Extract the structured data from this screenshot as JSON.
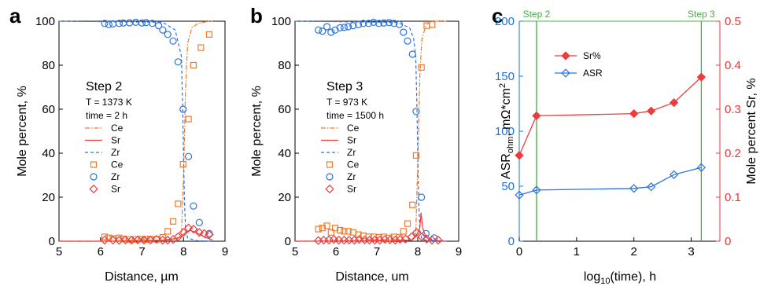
{
  "colors": {
    "ce": "#f27a2a",
    "zr": "#2a73e0",
    "sr": "#ee3b3b",
    "asr_axis": "#1f6fd6",
    "sr_axis": "#ee3333",
    "step_lines": "#3fb33a"
  },
  "chart_data": [
    {
      "panel": "a",
      "type": "scatter",
      "xlabel": "Distance, µm",
      "ylabel": "Mole percent, %",
      "xlim": [
        5,
        9
      ],
      "ylim": [
        0,
        100
      ],
      "xticks": [
        5,
        6,
        7,
        8,
        9
      ],
      "yticks": [
        0,
        20,
        40,
        60,
        80,
        100
      ],
      "step_title": "Step 2",
      "conditions": [
        "T = 1373 K",
        "time = 2 h"
      ],
      "legend": [
        "Ce",
        "Sr",
        "Zr",
        "Ce",
        "Zr",
        "Sr"
      ],
      "lines": {
        "Ce": [
          [
            5.0,
            0
          ],
          [
            6.0,
            0
          ],
          [
            7.5,
            0.3
          ],
          [
            7.85,
            1.0
          ],
          [
            7.95,
            3
          ],
          [
            8.0,
            30
          ],
          [
            8.05,
            70
          ],
          [
            8.1,
            90
          ],
          [
            8.2,
            97
          ],
          [
            8.35,
            99
          ],
          [
            8.6,
            100
          ],
          [
            8.7,
            100
          ]
        ],
        "Sr": [
          [
            5.0,
            0
          ],
          [
            6.0,
            0
          ],
          [
            7.5,
            0.5
          ],
          [
            7.8,
            1.2
          ],
          [
            7.95,
            2
          ],
          [
            8.05,
            4
          ],
          [
            8.15,
            5
          ],
          [
            8.3,
            4
          ],
          [
            8.5,
            2
          ],
          [
            8.7,
            0.5
          ]
        ],
        "Zr": [
          [
            5.0,
            100
          ],
          [
            7.5,
            99.5
          ],
          [
            7.8,
            96
          ],
          [
            7.9,
            88
          ],
          [
            7.95,
            84
          ],
          [
            7.98,
            60
          ],
          [
            8.02,
            20
          ],
          [
            8.05,
            5
          ],
          [
            8.1,
            1.5
          ],
          [
            8.3,
            0.3
          ],
          [
            8.7,
            0
          ]
        ]
      },
      "markers": {
        "Ce": [
          [
            6.1,
            2
          ],
          [
            6.2,
            1.5
          ],
          [
            6.3,
            1.2
          ],
          [
            6.45,
            1.5
          ],
          [
            6.55,
            1
          ],
          [
            6.7,
            0.8
          ],
          [
            6.85,
            0.8
          ],
          [
            7.0,
            1
          ],
          [
            7.1,
            0.8
          ],
          [
            7.2,
            1
          ],
          [
            7.35,
            0.9
          ],
          [
            7.5,
            1.8
          ],
          [
            7.62,
            4.5
          ],
          [
            7.75,
            9
          ],
          [
            7.87,
            17
          ],
          [
            7.99,
            35
          ],
          [
            8.12,
            55.5
          ],
          [
            8.24,
            80
          ],
          [
            8.42,
            88
          ],
          [
            8.62,
            94
          ]
        ],
        "Zr": [
          [
            6.1,
            99
          ],
          [
            6.2,
            98.5
          ],
          [
            6.3,
            98.8
          ],
          [
            6.45,
            99
          ],
          [
            6.55,
            99.2
          ],
          [
            6.7,
            99.3
          ],
          [
            6.85,
            99.5
          ],
          [
            7.0,
            99.2
          ],
          [
            7.1,
            99.4
          ],
          [
            7.25,
            99
          ],
          [
            7.4,
            98
          ],
          [
            7.5,
            96
          ],
          [
            7.62,
            94
          ],
          [
            7.75,
            91
          ],
          [
            7.87,
            81.5
          ],
          [
            7.99,
            60
          ],
          [
            8.12,
            38.5
          ],
          [
            8.24,
            16
          ],
          [
            8.38,
            8.5
          ],
          [
            8.62,
            3.5
          ]
        ],
        "Sr": [
          [
            6.1,
            0.5
          ],
          [
            6.3,
            0.5
          ],
          [
            6.45,
            0.4
          ],
          [
            6.6,
            0.6
          ],
          [
            6.75,
            0.5
          ],
          [
            6.9,
            0.6
          ],
          [
            7.05,
            0.5
          ],
          [
            7.2,
            0.5
          ],
          [
            7.35,
            0.8
          ],
          [
            7.5,
            0.5
          ],
          [
            7.62,
            0.5
          ],
          [
            7.75,
            0.8
          ],
          [
            7.87,
            2
          ],
          [
            8.0,
            4
          ],
          [
            8.12,
            6
          ],
          [
            8.24,
            5.5
          ],
          [
            8.38,
            4
          ],
          [
            8.5,
            3.5
          ],
          [
            8.62,
            3
          ]
        ]
      }
    },
    {
      "panel": "b",
      "type": "scatter",
      "xlabel": "Distance, um",
      "ylabel": "Mole percent, %",
      "xlim": [
        5,
        9
      ],
      "ylim": [
        0,
        100
      ],
      "xticks": [
        5,
        6,
        7,
        8,
        9
      ],
      "yticks": [
        0,
        20,
        40,
        60,
        80,
        100
      ],
      "step_title": "Step 3",
      "conditions": [
        "T = 973 K",
        "time = 1500 h"
      ],
      "legend": [
        "Ce",
        "Sr",
        "Zr",
        "Ce",
        "Zr",
        "Sr"
      ],
      "lines": {
        "Ce": [
          [
            5.0,
            0
          ],
          [
            7.0,
            0
          ],
          [
            7.85,
            0.5
          ],
          [
            7.95,
            3
          ],
          [
            8.0,
            35
          ],
          [
            8.05,
            75
          ],
          [
            8.1,
            92
          ],
          [
            8.2,
            98
          ],
          [
            8.3,
            100
          ],
          [
            8.7,
            100
          ]
        ],
        "Sr": [
          [
            5.0,
            0
          ],
          [
            7.5,
            0.2
          ],
          [
            7.85,
            0.5
          ],
          [
            7.95,
            2
          ],
          [
            8.05,
            6
          ],
          [
            8.08,
            13
          ],
          [
            8.12,
            6
          ],
          [
            8.2,
            2
          ],
          [
            8.3,
            0.5
          ],
          [
            8.7,
            0
          ]
        ],
        "Zr": [
          [
            5.0,
            100
          ],
          [
            7.5,
            99.5
          ],
          [
            7.8,
            97
          ],
          [
            7.9,
            92
          ],
          [
            7.95,
            84
          ],
          [
            7.98,
            60
          ],
          [
            8.02,
            20
          ],
          [
            8.05,
            5
          ],
          [
            8.1,
            1
          ],
          [
            8.3,
            0
          ],
          [
            8.7,
            0
          ]
        ]
      },
      "markers": {
        "Ce": [
          [
            5.57,
            5.5
          ],
          [
            5.67,
            6
          ],
          [
            5.78,
            7
          ],
          [
            5.88,
            4
          ],
          [
            5.98,
            6
          ],
          [
            6.1,
            5
          ],
          [
            6.2,
            4.5
          ],
          [
            6.3,
            4.5
          ],
          [
            6.42,
            4
          ],
          [
            6.55,
            3
          ],
          [
            6.67,
            2.5
          ],
          [
            6.8,
            2
          ],
          [
            6.92,
            2
          ],
          [
            7.05,
            1.8
          ],
          [
            7.17,
            2
          ],
          [
            7.3,
            1.5
          ],
          [
            7.42,
            2
          ],
          [
            7.55,
            1.8
          ],
          [
            7.65,
            4.5
          ],
          [
            7.75,
            8
          ],
          [
            7.87,
            16.5
          ],
          [
            7.96,
            39
          ],
          [
            8.09,
            79
          ],
          [
            8.22,
            98
          ],
          [
            8.35,
            98.5
          ]
        ],
        "Zr": [
          [
            5.57,
            96
          ],
          [
            5.67,
            95.5
          ],
          [
            5.78,
            97.5
          ],
          [
            5.88,
            95
          ],
          [
            5.98,
            96
          ],
          [
            6.1,
            97
          ],
          [
            6.2,
            97.2
          ],
          [
            6.3,
            97.5
          ],
          [
            6.42,
            98
          ],
          [
            6.55,
            98.5
          ],
          [
            6.67,
            99
          ],
          [
            6.8,
            99
          ],
          [
            6.92,
            99.5
          ],
          [
            7.05,
            99
          ],
          [
            7.17,
            99.2
          ],
          [
            7.3,
            99.4
          ],
          [
            7.42,
            99
          ],
          [
            7.55,
            98.5
          ],
          [
            7.65,
            95
          ],
          [
            7.75,
            91
          ],
          [
            7.87,
            85
          ],
          [
            7.96,
            59
          ],
          [
            8.09,
            20
          ],
          [
            8.2,
            3.5
          ],
          [
            8.4,
            1.5
          ]
        ],
        "Sr": [
          [
            5.57,
            0.3
          ],
          [
            5.7,
            0.5
          ],
          [
            5.83,
            0.6
          ],
          [
            5.95,
            0.8
          ],
          [
            6.07,
            0.5
          ],
          [
            6.2,
            0.5
          ],
          [
            6.32,
            0.5
          ],
          [
            6.45,
            0.5
          ],
          [
            6.57,
            0.8
          ],
          [
            6.7,
            0.6
          ],
          [
            6.82,
            0.5
          ],
          [
            6.95,
            0.5
          ],
          [
            7.07,
            0.5
          ],
          [
            7.2,
            0.8
          ],
          [
            7.32,
            0.6
          ],
          [
            7.45,
            0.5
          ],
          [
            7.57,
            0.8
          ],
          [
            7.7,
            1
          ],
          [
            7.85,
            2
          ],
          [
            7.97,
            4
          ],
          [
            8.1,
            2
          ],
          [
            8.22,
            1
          ],
          [
            8.35,
            0.5
          ],
          [
            8.5,
            0.5
          ]
        ]
      }
    },
    {
      "panel": "c",
      "type": "line",
      "xlabel": "log10(time), h",
      "xlabel_main": "log",
      "xlabel_sub": "10",
      "xlabel_rest": "(time), h",
      "ylabel_left": "ASRohm, mΩ*cm2",
      "ylabel_left_main": "ASR",
      "ylabel_left_sub": "ohm",
      "ylabel_left_rest": ", mΩ*cm",
      "ylabel_left_sup": "2",
      "ylabel_right": "Mole percent Sr, %",
      "xlim": [
        0,
        3.5
      ],
      "ylim_left": [
        0,
        200
      ],
      "ylim_right": [
        0,
        0.5
      ],
      "xticks": [
        0,
        1,
        2,
        3
      ],
      "yticks_left": [
        0,
        50,
        100,
        150,
        200
      ],
      "yticks_right": [
        0,
        0.1,
        0.2,
        0.3,
        0.4,
        0.5
      ],
      "ytick_labels_right": [
        "0",
        "0.1",
        "0.2",
        "0.3",
        "0.4",
        "0.5"
      ],
      "step_markers": [
        {
          "label": "Step 2",
          "x": 0.301
        },
        {
          "label": "Step 3",
          "x": 3.176
        }
      ],
      "series": [
        {
          "name": "Sr%",
          "axis": "right",
          "marker": "diamond-filled",
          "x": [
            0,
            0.301,
            2.0,
            2.301,
            2.699,
            3.176
          ],
          "values": [
            0.195,
            0.285,
            0.29,
            0.296,
            0.315,
            0.373
          ]
        },
        {
          "name": "ASR",
          "axis": "left",
          "marker": "diamond-open",
          "x": [
            0,
            0.301,
            2.0,
            2.301,
            2.699,
            3.176
          ],
          "values": [
            42,
            46.5,
            48,
            49.5,
            60.5,
            67
          ]
        }
      ]
    }
  ]
}
